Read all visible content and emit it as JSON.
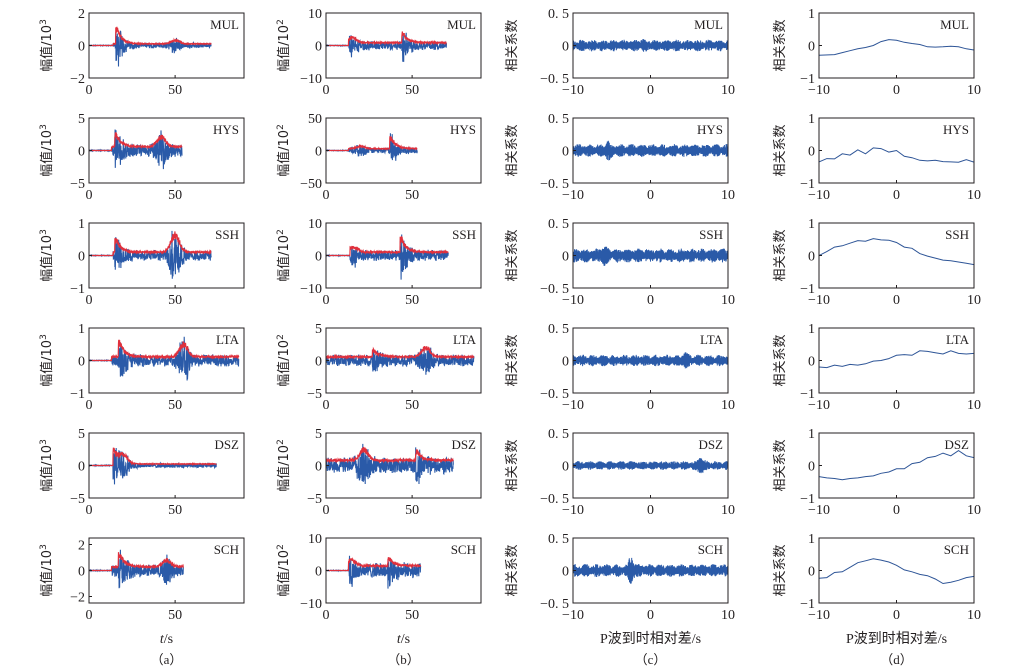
{
  "colors": {
    "trace": "#2a5aa8",
    "envelope": "#e0303c",
    "axis": "#231f20",
    "corr_line": "#2e5597"
  },
  "chart_data": [
    {
      "panel": "(a)",
      "type": "line",
      "xlabel": "t/s",
      "ylabel_prefix": "幅值/10",
      "ylabel_exp": "3",
      "xlim": [
        0,
        90
      ],
      "xticks": [
        "0",
        "50"
      ],
      "xtick_values": [
        0,
        50
      ],
      "series_names": [
        "waveform",
        "envelope"
      ],
      "rows": [
        {
          "station": "MUL",
          "ylim": [
            -2,
            2
          ],
          "yticks": [
            "2",
            "0",
            "−2"
          ],
          "ytick_values": [
            2,
            0,
            -2
          ],
          "onset": 14,
          "end": 71,
          "peak": 1.55,
          "trough": -1.7,
          "peak_t": 16.5,
          "second_t": 50,
          "second_amp": 0.35,
          "coda": 0.18
        },
        {
          "station": "HYS",
          "ylim": [
            -5,
            5
          ],
          "yticks": [
            "5",
            "0",
            "−5"
          ],
          "ytick_values": [
            5,
            0,
            -5
          ],
          "onset": 13,
          "end": 54,
          "peak": 4.0,
          "trough": -4.1,
          "peak_t": 16,
          "second_t": 42,
          "second_amp": 2.5,
          "coda": 1.0
        },
        {
          "station": "SSH",
          "ylim": [
            -1,
            1
          ],
          "yticks": [
            "1",
            "0",
            "−1"
          ],
          "ytick_values": [
            1,
            0,
            -1
          ],
          "onset": 14,
          "end": 71,
          "peak": 0.75,
          "trough": -0.8,
          "peak_t": 16,
          "second_t": 50,
          "second_amp": 0.9,
          "coda": 0.18
        },
        {
          "station": "LTA",
          "ylim": [
            -1,
            1
          ],
          "yticks": [
            "1",
            "0",
            "−1"
          ],
          "ytick_values": [
            1,
            0,
            -1
          ],
          "onset": 13,
          "end": 87,
          "peak": 0.9,
          "trough": -0.85,
          "peak_t": 18,
          "second_t": 55,
          "second_amp": 0.65,
          "coda": 0.2
        },
        {
          "station": "DSZ",
          "ylim": [
            -5,
            5
          ],
          "yticks": [
            "5",
            "0",
            "−5"
          ],
          "ytick_values": [
            5,
            0,
            -5
          ],
          "onset": 14,
          "end": 74,
          "peak": 3.2,
          "trough": -4.0,
          "peak_t": 14.5,
          "second_t": 20,
          "second_amp": 2.0,
          "coda": 0.4
        },
        {
          "station": "SCH",
          "ylim": [
            -2.5,
            2.5
          ],
          "yticks": [
            "2",
            "0",
            "−2"
          ],
          "ytick_values": [
            2,
            0,
            -2
          ],
          "onset": 13,
          "end": 55,
          "peak": 2.1,
          "trough": -2.0,
          "peak_t": 18,
          "second_t": 45,
          "second_amp": 0.8,
          "coda": 0.5
        }
      ]
    },
    {
      "panel": "(b)",
      "type": "line",
      "xlabel": "t/s",
      "ylabel_prefix": "幅值/10",
      "ylabel_exp": "2",
      "xlim": [
        0,
        90
      ],
      "xticks": [
        "0",
        "50"
      ],
      "xtick_values": [
        0,
        50
      ],
      "series_names": [
        "waveform",
        "envelope"
      ],
      "rows": [
        {
          "station": "MUL",
          "ylim": [
            -10,
            10
          ],
          "yticks": [
            "10",
            "0",
            "−10"
          ],
          "ytick_values": [
            10,
            0,
            -10
          ],
          "onset": 13,
          "end": 70,
          "peak": 6.0,
          "trough": -6.2,
          "peak_t": 45,
          "second_t": 15,
          "second_amp": 2.5,
          "coda": 1.5
        },
        {
          "station": "HYS",
          "ylim": [
            -50,
            50
          ],
          "yticks": [
            "50",
            "0",
            "−50"
          ],
          "ytick_values": [
            50,
            0,
            -50
          ],
          "onset": 13,
          "end": 53,
          "peak": 30,
          "trough": -32,
          "peak_t": 38,
          "second_t": 20,
          "second_amp": 6,
          "coda": 5
        },
        {
          "station": "SSH",
          "ylim": [
            -10,
            10
          ],
          "yticks": [
            "10",
            "0",
            "−10"
          ],
          "ytick_values": [
            10,
            0,
            -10
          ],
          "onset": 14,
          "end": 71,
          "peak": 8.5,
          "trough": -8.2,
          "peak_t": 44,
          "second_t": 16,
          "second_amp": 2.5,
          "coda": 1.8
        },
        {
          "station": "LTA",
          "ylim": [
            -5,
            5
          ],
          "yticks": [
            "5",
            "0",
            "−5"
          ],
          "ytick_values": [
            5,
            0,
            -5
          ],
          "onset": 0,
          "end": 86,
          "peak": 2.6,
          "trough": -2.5,
          "peak_t": 28,
          "second_t": 58,
          "second_amp": 2.4,
          "coda": 1.0
        },
        {
          "station": "DSZ",
          "ylim": [
            -5,
            5
          ],
          "yticks": [
            "5",
            "0",
            "−5"
          ],
          "ytick_values": [
            5,
            0,
            -5
          ],
          "onset": 0,
          "end": 74,
          "peak": 3.6,
          "trough": -3.0,
          "peak_t": 53,
          "second_t": 22,
          "second_amp": 2.7,
          "coda": 1.4
        },
        {
          "station": "SCH",
          "ylim": [
            -10,
            10
          ],
          "yticks": [
            "10",
            "0",
            "−10"
          ],
          "ytick_values": [
            10,
            0,
            -10
          ],
          "onset": 13,
          "end": 55,
          "peak": 4.8,
          "trough": -6.0,
          "peak_t": 37,
          "second_t": 15,
          "second_amp": 3.0,
          "coda": 2.5
        }
      ]
    },
    {
      "panel": "(c)",
      "type": "line",
      "xlabel": "P波到时相对差/s",
      "ylabel": "相关系数",
      "xlim": [
        -10,
        10
      ],
      "xticks": [
        "−10",
        "0",
        "10"
      ],
      "xtick_values": [
        -10,
        0,
        10
      ],
      "rows": [
        {
          "station": "MUL",
          "ylim": [
            -0.5,
            0.5
          ],
          "yticks": [
            "0. 5",
            "0",
            "−0. 5"
          ],
          "ytick_values": [
            0.5,
            0,
            -0.5
          ],
          "amp": 0.09,
          "peak_lag": -1,
          "peak_amp": 0.11
        },
        {
          "station": "HYS",
          "ylim": [
            -0.5,
            0.5
          ],
          "yticks": [
            "0. 5",
            "0",
            "−0. 5"
          ],
          "ytick_values": [
            0.5,
            0,
            -0.5
          ],
          "amp": 0.1,
          "peak_lag": -5.5,
          "peak_amp": 0.16
        },
        {
          "station": "SSH",
          "ylim": [
            -0.5,
            0.5
          ],
          "yticks": [
            "0. 5",
            "0",
            "−0. 5"
          ],
          "ytick_values": [
            0.5,
            0,
            -0.5
          ],
          "amp": 0.11,
          "peak_lag": -6,
          "peak_amp": 0.18
        },
        {
          "station": "LTA",
          "ylim": [
            -0.5,
            0.5
          ],
          "yticks": [
            "0. 5",
            "0",
            "−0. 5"
          ],
          "ytick_values": [
            0.5,
            0,
            -0.5
          ],
          "amp": 0.09,
          "peak_lag": 4.5,
          "peak_amp": 0.14
        },
        {
          "station": "DSZ",
          "ylim": [
            -0.5,
            0.5
          ],
          "yticks": [
            "0. 5",
            "0",
            "−0. 5"
          ],
          "ytick_values": [
            0.5,
            0,
            -0.5
          ],
          "amp": 0.07,
          "peak_lag": 6.5,
          "peak_amp": 0.15
        },
        {
          "station": "SCH",
          "ylim": [
            -0.5,
            0.5
          ],
          "yticks": [
            "0. 5",
            "0",
            "−0. 5"
          ],
          "ytick_values": [
            0.5,
            0,
            -0.5
          ],
          "amp": 0.1,
          "peak_lag": -2.5,
          "peak_amp": 0.22
        }
      ]
    },
    {
      "panel": "(d)",
      "type": "line",
      "xlabel": "P波到时相对差/s",
      "ylabel": "相关系数",
      "xlim": [
        -10,
        10
      ],
      "xticks": [
        "−10",
        "0",
        "10"
      ],
      "xtick_values": [
        -10,
        0,
        10
      ],
      "rows": [
        {
          "station": "MUL",
          "ylim": [
            -1,
            1
          ],
          "yticks": [
            "1",
            "0",
            "−1"
          ],
          "ytick_values": [
            1,
            0,
            -1
          ],
          "x": [
            -10,
            -8,
            -7,
            -6,
            -5,
            -4,
            -3,
            -2,
            -1,
            0,
            1,
            2,
            3,
            4,
            5,
            6,
            7,
            8,
            9,
            10
          ],
          "y": [
            -0.3,
            -0.28,
            -0.22,
            -0.16,
            -0.1,
            -0.06,
            0.0,
            0.12,
            0.18,
            0.16,
            0.1,
            0.06,
            0.03,
            -0.04,
            -0.05,
            -0.04,
            -0.02,
            -0.04,
            -0.1,
            -0.14
          ]
        },
        {
          "station": "HYS",
          "ylim": [
            -1,
            1
          ],
          "yticks": [
            "1",
            "0",
            "−1"
          ],
          "ytick_values": [
            1,
            0,
            -1
          ],
          "x": [
            -10,
            -9,
            -8,
            -7,
            -6,
            -5,
            -4,
            -3,
            -2,
            -1,
            0,
            1,
            2,
            3,
            4,
            5,
            6,
            7,
            8,
            9,
            10
          ],
          "y": [
            -0.35,
            -0.25,
            -0.26,
            -0.1,
            -0.14,
            0.02,
            -0.1,
            0.08,
            0.06,
            -0.05,
            0.0,
            -0.18,
            -0.22,
            -0.3,
            -0.32,
            -0.3,
            -0.34,
            -0.35,
            -0.36,
            -0.28,
            -0.36
          ]
        },
        {
          "station": "SSH",
          "ylim": [
            -1,
            1
          ],
          "yticks": [
            "1",
            "0",
            "−1"
          ],
          "ytick_values": [
            1,
            0,
            -1
          ],
          "x": [
            -10,
            -9,
            -8,
            -7,
            -6,
            -5,
            -4,
            -3,
            -2,
            -1,
            0,
            1,
            2,
            3,
            4,
            5,
            6,
            7,
            8,
            9,
            10
          ],
          "y": [
            0.0,
            0.12,
            0.26,
            0.3,
            0.38,
            0.46,
            0.44,
            0.52,
            0.48,
            0.47,
            0.4,
            0.26,
            0.22,
            0.06,
            -0.02,
            -0.08,
            -0.14,
            -0.16,
            -0.2,
            -0.24,
            -0.28
          ]
        },
        {
          "station": "LTA",
          "ylim": [
            -1,
            1
          ],
          "yticks": [
            "1",
            "0",
            "−1"
          ],
          "ytick_values": [
            1,
            0,
            -1
          ],
          "x": [
            -10,
            -9,
            -8,
            -7,
            -6,
            -5,
            -4,
            -3,
            -2,
            -1,
            0,
            1,
            2,
            3,
            4,
            5,
            6,
            7,
            8,
            9,
            10
          ],
          "y": [
            -0.2,
            -0.22,
            -0.14,
            -0.18,
            -0.12,
            -0.14,
            -0.1,
            -0.02,
            0.0,
            0.06,
            0.16,
            0.18,
            0.16,
            0.3,
            0.28,
            0.24,
            0.2,
            0.3,
            0.22,
            0.2,
            0.22
          ]
        },
        {
          "station": "DSZ",
          "ylim": [
            -1,
            1
          ],
          "yticks": [
            "1",
            "0",
            "−1"
          ],
          "ytick_values": [
            1,
            0,
            -1
          ],
          "x": [
            -10,
            -9,
            -8,
            -7,
            -6,
            -5,
            -4,
            -3,
            -2,
            -1,
            0,
            1,
            2,
            3,
            4,
            5,
            6,
            7,
            8,
            9,
            10
          ],
          "y": [
            -0.34,
            -0.38,
            -0.4,
            -0.44,
            -0.4,
            -0.38,
            -0.34,
            -0.32,
            -0.24,
            -0.2,
            -0.1,
            -0.1,
            0.06,
            0.1,
            0.24,
            0.28,
            0.38,
            0.3,
            0.46,
            0.3,
            0.24
          ]
        },
        {
          "station": "SCH",
          "ylim": [
            -1,
            1
          ],
          "yticks": [
            "1",
            "0",
            "−1"
          ],
          "ytick_values": [
            1,
            0,
            -1
          ],
          "x": [
            -10,
            -9,
            -8,
            -7,
            -6,
            -5,
            -4,
            -3,
            -2,
            -1,
            0,
            1,
            2,
            3,
            4,
            5,
            6,
            7,
            8,
            9,
            10
          ],
          "y": [
            -0.24,
            -0.22,
            -0.06,
            -0.04,
            0.1,
            0.24,
            0.3,
            0.36,
            0.32,
            0.26,
            0.16,
            0.02,
            -0.04,
            -0.12,
            -0.16,
            -0.26,
            -0.4,
            -0.36,
            -0.3,
            -0.22,
            -0.18
          ]
        }
      ]
    }
  ],
  "captions": [
    "（a）",
    "（b）",
    "（c）",
    "（d）"
  ]
}
